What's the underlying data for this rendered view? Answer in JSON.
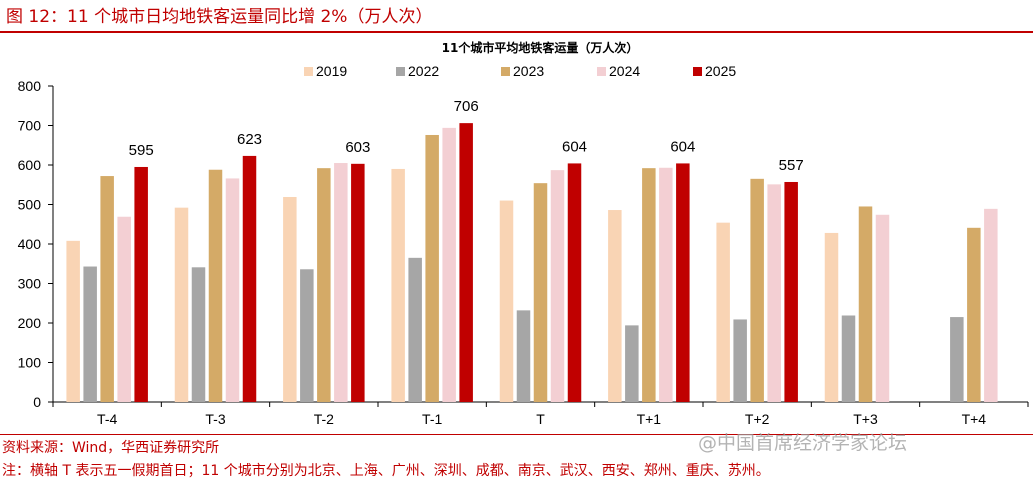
{
  "figure_title": "图 12：11 个城市日均地铁客运量同比增 2%（万人次）",
  "source": "资料来源：Wind，华西证券研究所",
  "note": "注：横轴 T 表示五一假期首日；11 个城市分别为北京、上海、广州、深圳、成都、南京、武汉、西安、郑州、重庆、苏州。",
  "watermark": "@中国首席经济学家论坛",
  "chart_data": {
    "type": "bar",
    "title": "11个城市平均地铁客运量（万人次）",
    "xlabel": "",
    "ylabel": "",
    "ylim": [
      0,
      800
    ],
    "yticks": [
      "0",
      "100",
      "200",
      "300",
      "400",
      "500",
      "600",
      "700",
      "800"
    ],
    "legend_position": "top-center",
    "grid": false,
    "categories": [
      "T-4",
      "T-3",
      "T-2",
      "T-1",
      "T",
      "T+1",
      "T+2",
      "T+3",
      "T+4"
    ],
    "series": [
      {
        "name": "2019",
        "color": "#f9d4b4",
        "values": [
          408,
          492,
          519,
          590,
          510,
          486,
          454,
          428,
          null
        ]
      },
      {
        "name": "2022",
        "color": "#a6a6a6",
        "values": [
          343,
          341,
          336,
          365,
          232,
          194,
          209,
          219,
          215
        ]
      },
      {
        "name": "2023",
        "color": "#d4aa67",
        "values": [
          572,
          588,
          592,
          676,
          554,
          592,
          565,
          495,
          441
        ]
      },
      {
        "name": "2024",
        "color": "#f3cfd3",
        "values": [
          469,
          566,
          605,
          694,
          587,
          593,
          551,
          474,
          489
        ]
      },
      {
        "name": "2025",
        "color": "#c00000",
        "values": [
          595,
          623,
          603,
          706,
          604,
          604,
          557,
          null,
          null
        ]
      }
    ],
    "data_labels": {
      "series": "2025",
      "values": [
        "595",
        "623",
        "603",
        "706",
        "604",
        "604",
        "557"
      ]
    }
  }
}
